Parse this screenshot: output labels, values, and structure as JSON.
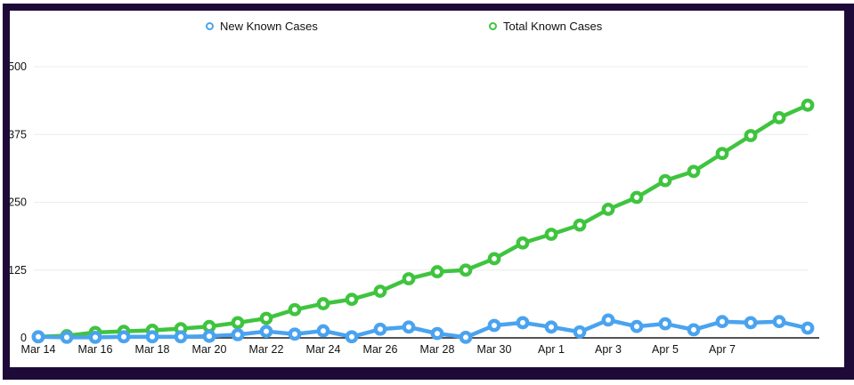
{
  "window": {
    "border_color": "#1e0a38",
    "background": "#ffffff"
  },
  "legend": [
    {
      "label": "New Known Cases",
      "color": "#4aa3ef"
    },
    {
      "label": "Total Known Cases",
      "color": "#3fc43f"
    }
  ],
  "chart_data": {
    "type": "line",
    "title": "",
    "xlabel": "",
    "ylabel": "",
    "x": [
      "Mar 14",
      "Mar 15",
      "Mar 16",
      "Mar 17",
      "Mar 18",
      "Mar 19",
      "Mar 20",
      "Mar 21",
      "Mar 22",
      "Mar 23",
      "Mar 24",
      "Mar 25",
      "Mar 26",
      "Mar 27",
      "Mar 28",
      "Mar 29",
      "Mar 30",
      "Mar 31",
      "Apr 1",
      "Apr 2",
      "Apr 3",
      "Apr 4",
      "Apr 5",
      "Apr 6",
      "Apr 7",
      "Apr 8",
      "Apr 9",
      "Apr 10"
    ],
    "x_tick_labels": [
      "Mar 14",
      "Mar 16",
      "Mar 18",
      "Mar 20",
      "Mar 22",
      "Mar 24",
      "Mar 26",
      "Mar 28",
      "Mar 30",
      "Apr 1",
      "Apr 3",
      "Apr 5",
      "Apr 7"
    ],
    "x_tick_step": 2,
    "series": [
      {
        "name": "New Known Cases",
        "color": "#4aa3ef",
        "values": [
          2,
          1,
          1,
          2,
          2,
          2,
          3,
          6,
          12,
          7,
          13,
          2,
          16,
          20,
          8,
          1,
          23,
          28,
          20,
          11,
          33,
          21,
          26,
          15,
          30,
          28,
          30,
          18
        ]
      },
      {
        "name": "Total Known Cases",
        "color": "#3fc43f",
        "values": [
          2,
          4,
          10,
          12,
          14,
          17,
          21,
          28,
          36,
          52,
          63,
          71,
          86,
          109,
          122,
          125,
          146,
          175,
          191,
          208,
          237,
          259,
          290,
          307,
          340,
          373,
          406,
          429
        ]
      }
    ],
    "ylim": [
      0,
      500
    ],
    "yticks": [
      0,
      125,
      250,
      375,
      500
    ],
    "grid": "horizontal",
    "grid_color": "#ececec",
    "axis_color": "#1a1a1a",
    "label_color": "#111111",
    "legend_position": "top",
    "marker": "open-circle"
  }
}
